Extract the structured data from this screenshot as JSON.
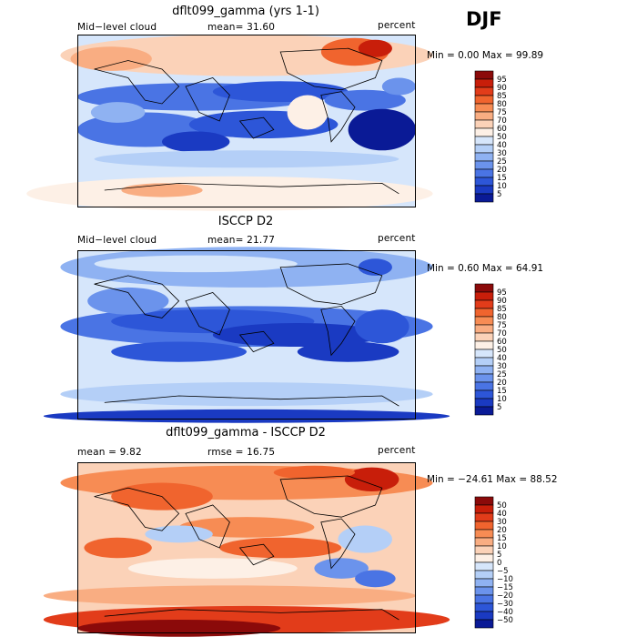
{
  "season": "DJF",
  "panels": [
    {
      "title": "dflt099_gamma (yrs 1-1)",
      "left_label": "Mid−level cloud",
      "stat_label": "mean=  31.60",
      "units": "percent",
      "minmax": "Min =    0.00 Max =  99.89",
      "colorbar_labels": [
        "95",
        "90",
        "85",
        "80",
        "75",
        "70",
        "60",
        "50",
        "40",
        "30",
        "25",
        "20",
        "15",
        "10",
        "5"
      ],
      "colorbar_colors": [
        "#8b0a0a",
        "#c81e0a",
        "#e23c1a",
        "#f0642e",
        "#f78c54",
        "#f9ad82",
        "#fbd2b8",
        "#fdf0e6",
        "#d6e6fb",
        "#b4cff7",
        "#8fb2f2",
        "#6b93ec",
        "#4a74e4",
        "#2d56d8",
        "#1a3ac2",
        "#0a1a96"
      ],
      "map_dominant": "blue"
    },
    {
      "title": "ISCCP D2",
      "left_label": "Mid−level cloud",
      "stat_label": "mean=  21.77",
      "units": "percent",
      "minmax": "Min =    0.60 Max =  64.91",
      "colorbar_labels": [
        "95",
        "90",
        "85",
        "80",
        "75",
        "70",
        "60",
        "50",
        "40",
        "30",
        "25",
        "20",
        "15",
        "10",
        "5"
      ],
      "colorbar_colors": [
        "#8b0a0a",
        "#c81e0a",
        "#e23c1a",
        "#f0642e",
        "#f78c54",
        "#f9ad82",
        "#fbd2b8",
        "#fdf0e6",
        "#d6e6fb",
        "#b4cff7",
        "#8fb2f2",
        "#6b93ec",
        "#4a74e4",
        "#2d56d8",
        "#1a3ac2",
        "#0a1a96"
      ],
      "map_dominant": "blue"
    },
    {
      "title": "dflt099_gamma - ISCCP D2",
      "left_label": "mean =    9.82",
      "stat_label": "rmse =  16.75",
      "units": "percent",
      "minmax": "Min = −24.61 Max =  88.52",
      "colorbar_labels": [
        "50",
        "40",
        "30",
        "20",
        "15",
        "10",
        "5",
        "0",
        "−5",
        "−10",
        "−15",
        "−20",
        "−30",
        "−40",
        "−50"
      ],
      "colorbar_colors": [
        "#8b0a0a",
        "#c81e0a",
        "#e23c1a",
        "#f0642e",
        "#f78c54",
        "#f9ad82",
        "#fbd2b8",
        "#fdf0e6",
        "#d6e6fb",
        "#b4cff7",
        "#8fb2f2",
        "#6b93ec",
        "#4a74e4",
        "#2d56d8",
        "#1a3ac2",
        "#0a1a96"
      ],
      "map_dominant": "red"
    }
  ]
}
